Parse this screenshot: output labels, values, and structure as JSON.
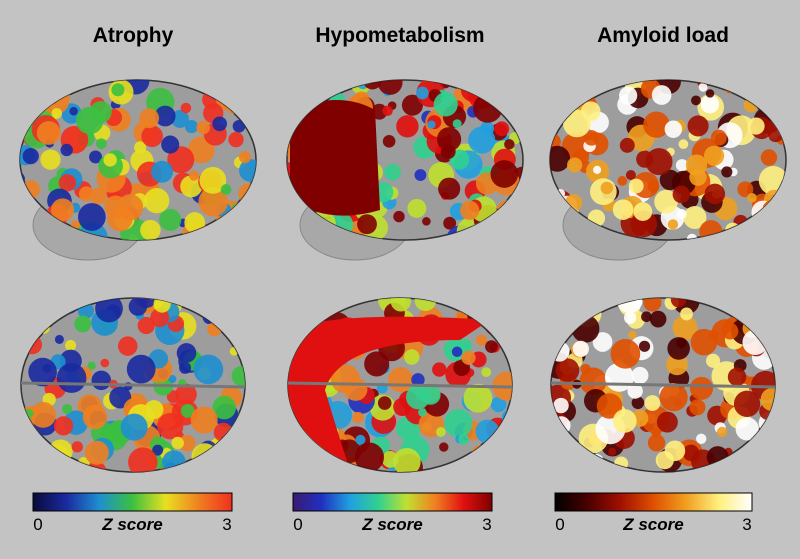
{
  "panels": [
    {
      "title": "Atrophy",
      "colorbar": {
        "min": 0,
        "max": 3,
        "label": "Z score",
        "colors": [
          "#0a0a3a",
          "#1a2aa0",
          "#1e8fd0",
          "#3cc040",
          "#e8e020",
          "#f08020",
          "#f03020"
        ]
      }
    },
    {
      "title": "Hypometabolism",
      "colorbar": {
        "min": 0,
        "max": 3,
        "label": "Z score",
        "colors": [
          "#3a1a70",
          "#2030c0",
          "#20a0e0",
          "#30d090",
          "#c0e030",
          "#f08020",
          "#e01010",
          "#800000"
        ]
      }
    },
    {
      "title": "Amyloid load",
      "colorbar": {
        "min": 0,
        "max": 3,
        "label": "Z score",
        "colors": [
          "#000000",
          "#4a0000",
          "#a01000",
          "#e05000",
          "#f0a020",
          "#fff080",
          "#ffffff"
        ]
      }
    }
  ]
}
